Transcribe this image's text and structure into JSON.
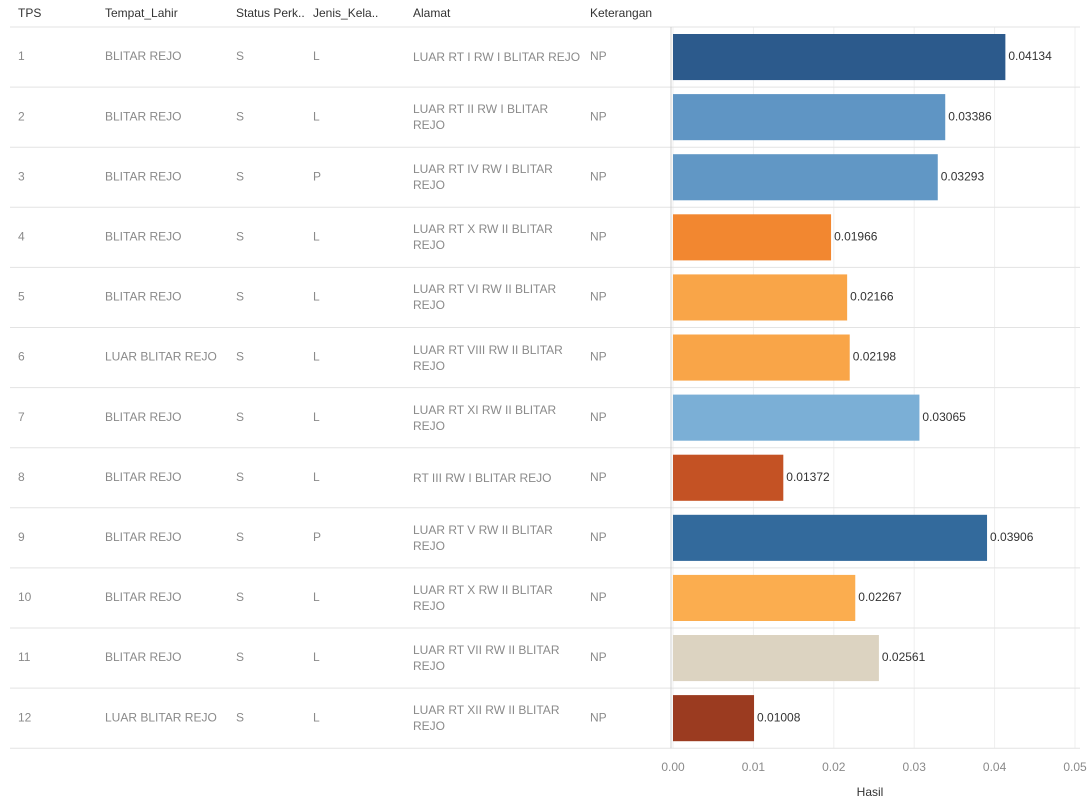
{
  "chart_data": {
    "type": "bar",
    "columns": [
      "TPS",
      "Tempat_Lahir",
      "Status Perk..",
      "Jenis_Kela..",
      "Alamat",
      "Keterangan"
    ],
    "categories": [
      "1",
      "2",
      "3",
      "4",
      "5",
      "6",
      "7",
      "8",
      "9",
      "10",
      "11",
      "12"
    ],
    "rows": [
      [
        "BLITAR REJO",
        "S",
        "L",
        "LUAR RT I RW I BLITAR REJO",
        "NP"
      ],
      [
        "BLITAR REJO",
        "S",
        "L",
        "LUAR RT II RW I BLITAR REJO",
        "NP"
      ],
      [
        "BLITAR REJO",
        "S",
        "P",
        "LUAR RT IV RW I BLITAR REJO",
        "NP"
      ],
      [
        "BLITAR REJO",
        "S",
        "L",
        "LUAR RT X RW II BLITAR REJO",
        "NP"
      ],
      [
        "BLITAR REJO",
        "S",
        "L",
        "LUAR RT VI RW II BLITAR REJO",
        "NP"
      ],
      [
        "LUAR BLITAR REJO",
        "S",
        "L",
        "LUAR RT VIII RW II BLITAR REJO",
        "NP"
      ],
      [
        "BLITAR REJO",
        "S",
        "L",
        "LUAR RT XI RW II BLITAR REJO",
        "NP"
      ],
      [
        "BLITAR REJO",
        "S",
        "L",
        "RT III RW I BLITAR REJO",
        "NP"
      ],
      [
        "BLITAR REJO",
        "S",
        "P",
        "LUAR RT V RW II BLITAR REJO",
        "NP"
      ],
      [
        "BLITAR REJO",
        "S",
        "L",
        "LUAR RT X RW II BLITAR REJO",
        "NP"
      ],
      [
        "BLITAR REJO",
        "S",
        "L",
        "LUAR RT VII RW II BLITAR REJO",
        "NP"
      ],
      [
        "LUAR BLITAR REJO",
        "S",
        "L",
        "LUAR RT XII RW II BLITAR REJO",
        "NP"
      ]
    ],
    "values": [
      0.04134,
      0.03386,
      0.03293,
      0.01966,
      0.02166,
      0.02198,
      0.03065,
      0.01372,
      0.03906,
      0.02267,
      0.02561,
      0.01008
    ],
    "colors": [
      "#2c5a8c",
      "#5f95c4",
      "#6197c5",
      "#f28730",
      "#f9a548",
      "#f9a548",
      "#7bafd6",
      "#c45224",
      "#336a9c",
      "#fbad4f",
      "#dcd3c1",
      "#9b3b20"
    ],
    "x_label": "Hasil",
    "xlim": [
      0,
      0.05
    ],
    "xticks": [
      {
        "value": 0,
        "label": "0.00"
      },
      0.01,
      0.02,
      0.03,
      0.04,
      0.05
    ],
    "grid": true
  }
}
